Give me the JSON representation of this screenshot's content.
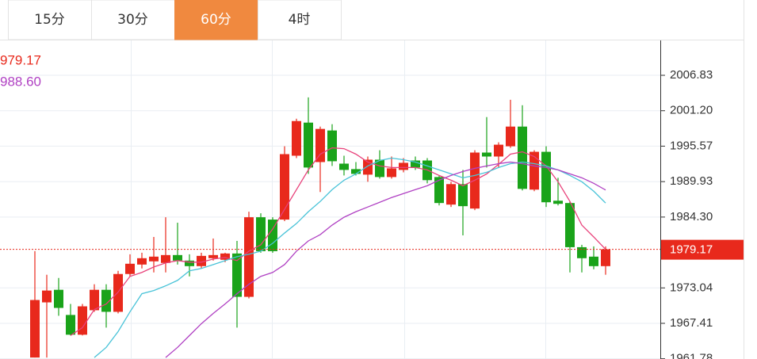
{
  "tabs": [
    "15分",
    "30分",
    "60分",
    "4时"
  ],
  "active_tab": 2,
  "chart_data": {
    "type": "candlestick",
    "indicator_labels": [
      {
        "text": "979.17",
        "color": "#e8291c"
      },
      {
        "text": "988.60",
        "color": "#b041c3"
      }
    ],
    "ylim": [
      1961.74,
      2012.5
    ],
    "yticks": [
      2006.83,
      {
        "value": 2001.2,
        "label": "2001.20"
      },
      1995.57,
      1989.93,
      {
        "value": 1984.3,
        "label": "1984.30"
      },
      1973.04,
      1967.41,
      1961.78
    ],
    "current_price": 1979.17,
    "current_color": "#e8291c",
    "up_color": "#e8291c",
    "down_color": "#1aa31a",
    "grid": true,
    "open": [
      1961.97,
      1970.74,
      1972.74,
      1968.74,
      1965.6,
      1969.49,
      1972.74,
      1969.24,
      1975.25,
      1976.75,
      1977.26,
      1977.01,
      1978.26,
      1977.38,
      1976.5,
      1977.76,
      1977.51,
      1978.51,
      1971.62,
      1984.27,
      1983.9,
      1983.9,
      1994.05,
      1999.31,
      1993.04,
      1998.06,
      1992.79,
      1991.92,
      1991.04,
      1993.42,
      1990.66,
      1991.79,
      1993.29,
      1993.29,
      1990.66,
      1986.28,
      1989.54,
      1985.65,
      1994.55,
      1993.92,
      1995.55,
      1998.68,
      1988.66,
      1994.67,
      1986.9,
      1986.53,
      1979.51,
      1978.01,
      1976.5
    ],
    "high": [
      1978.88,
      1975.13,
      1974.62,
      1970.49,
      1970.49,
      1973.62,
      1973.62,
      1975.75,
      1978.38,
      1978.63,
      1981.14,
      1984.27,
      1983.4,
      1978.38,
      1978.63,
      1980.89,
      1978.63,
      1980.51,
      1985.15,
      1984.9,
      1984.27,
      1995.55,
      1999.93,
      2003.32,
      1998.68,
      1999.06,
      1994.05,
      1993.04,
      1993.92,
      1994.92,
      1993.92,
      1993.67,
      1993.92,
      1993.67,
      1990.91,
      1989.91,
      1991.79,
      1994.92,
      2000.19,
      1996.18,
      2002.94,
      2002.07,
      1994.92,
      1995.55,
      1990.54,
      1986.78,
      1979.89,
      1979.64,
      1979.64
    ],
    "low": [
      1961.97,
      1961.97,
      1968.61,
      1965.48,
      1965.48,
      1969.24,
      1966.73,
      1968.99,
      1974.87,
      1976.13,
      1975.5,
      1975.5,
      1976.75,
      1974.87,
      1976.13,
      1977.38,
      1977.13,
      1966.73,
      1971.37,
      1978.63,
      1978.63,
      1983.65,
      1993.67,
      1991.16,
      1988.28,
      1992.42,
      1990.91,
      1990.91,
      1989.91,
      1990.41,
      1990.41,
      1991.41,
      1991.79,
      1989.66,
      1986.15,
      1985.9,
      1981.39,
      1985.4,
      1992.17,
      1992.17,
      1995.3,
      1988.53,
      1988.41,
      1985.9,
      1986.15,
      1975.5,
      1975.5,
      1976.0,
      1975.13
    ],
    "close": [
      1971.12,
      1972.62,
      1969.86,
      1965.6,
      1970.11,
      1972.74,
      1969.24,
      1975.25,
      1976.88,
      1977.76,
      1978.01,
      1978.26,
      1977.38,
      1976.5,
      1978.13,
      1978.26,
      1978.51,
      1971.62,
      1984.27,
      1978.88,
      1978.88,
      1994.3,
      1999.56,
      1992.17,
      1998.31,
      1993.17,
      1991.79,
      1991.16,
      1993.42,
      1990.66,
      1992.04,
      1992.92,
      1992.17,
      1990.16,
      1986.53,
      1989.54,
      1986.03,
      1994.55,
      1993.92,
      1995.8,
      1998.68,
      1988.78,
      1994.67,
      1986.65,
      1986.4,
      1979.51,
      1977.76,
      1976.5,
      1979.17
    ],
    "series": [
      {
        "color": "#e8417a",
        "values": [
          null,
          null,
          null,
          1965.47,
          1966.73,
          1969.61,
          1970.49,
          1972.37,
          1974.87,
          1975.5,
          1976.37,
          1977.01,
          1977.38,
          1977.13,
          1977.13,
          1977.63,
          1977.88,
          1977.38,
          1978.88,
          1979.89,
          1982.39,
          1985.52,
          1988.66,
          1991.79,
          1994.3,
          1995.3,
          1995.17,
          1994.3,
          1993.04,
          1992.42,
          1992.17,
          1992.17,
          1992.17,
          1991.79,
          1990.91,
          1990.16,
          1989.28,
          1990.16,
          1991.16,
          1992.67,
          1994.3,
          1994.67,
          1993.92,
          1992.42,
          1989.91,
          1986.78,
          1983.02,
          1981.14,
          1979.17
        ]
      },
      {
        "color": "#49c3d8",
        "values": [
          null,
          null,
          null,
          null,
          null,
          1961.97,
          1963.59,
          1966.1,
          1969.24,
          1972.12,
          1972.62,
          1973.37,
          1974.24,
          1975.75,
          1976.13,
          1976.75,
          1977.38,
          1978.01,
          1978.38,
          1978.88,
          1980.13,
          1981.76,
          1983.27,
          1985.15,
          1986.78,
          1988.66,
          1990.16,
          1991.16,
          1992.42,
          1993.29,
          1993.67,
          1993.42,
          1993.04,
          1992.42,
          1991.79,
          1991.16,
          1990.54,
          1990.91,
          1991.41,
          1992.17,
          1992.79,
          1993.04,
          1992.79,
          1992.42,
          1991.79,
          1990.91,
          1989.91,
          1988.41,
          1986.53
        ]
      },
      {
        "color": "#b041c3",
        "values": [
          null,
          null,
          null,
          null,
          null,
          null,
          null,
          null,
          null,
          null,
          null,
          1961.97,
          1963.59,
          1965.47,
          1967.35,
          1968.98,
          1970.49,
          1972.12,
          1973.62,
          1974.87,
          1975.5,
          1976.75,
          1978.88,
          1980.51,
          1981.51,
          1983.02,
          1984.27,
          1985.15,
          1985.9,
          1986.65,
          1987.4,
          1988.03,
          1988.66,
          1989.28,
          1990.16,
          1990.91,
          1991.54,
          1992.04,
          1992.42,
          1992.79,
          1993.04,
          1992.79,
          1992.42,
          1992.17,
          1991.79,
          1991.16,
          1990.54,
          1989.66,
          1988.6
        ]
      }
    ]
  }
}
